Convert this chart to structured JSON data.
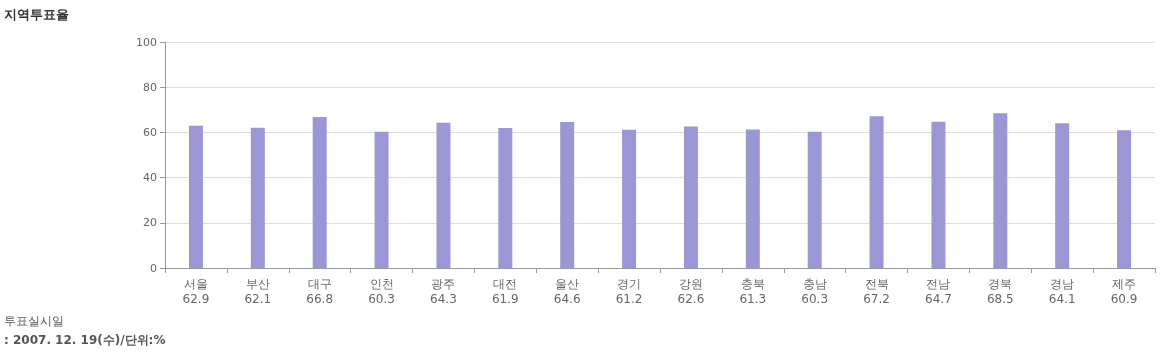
{
  "chart_data": {
    "type": "bar",
    "title": "지역투표율",
    "categories": [
      "서울",
      "부산",
      "대구",
      "인천",
      "광주",
      "대전",
      "울산",
      "경기",
      "강원",
      "충북",
      "충남",
      "전북",
      "전남",
      "경북",
      "경남",
      "제주"
    ],
    "values": [
      62.9,
      62.1,
      66.8,
      60.3,
      64.3,
      61.9,
      64.6,
      61.2,
      62.6,
      61.3,
      60.3,
      67.2,
      64.7,
      68.5,
      64.1,
      60.9
    ],
    "color": "#9b97d6",
    "ylim": [
      0,
      100
    ],
    "yticks": [
      0,
      20,
      40,
      60,
      80,
      100
    ],
    "grid": "y",
    "data_labels": true,
    "annotations": [
      "투표실시일",
      ": 2007. 12. 19(수)/단위:%"
    ]
  }
}
